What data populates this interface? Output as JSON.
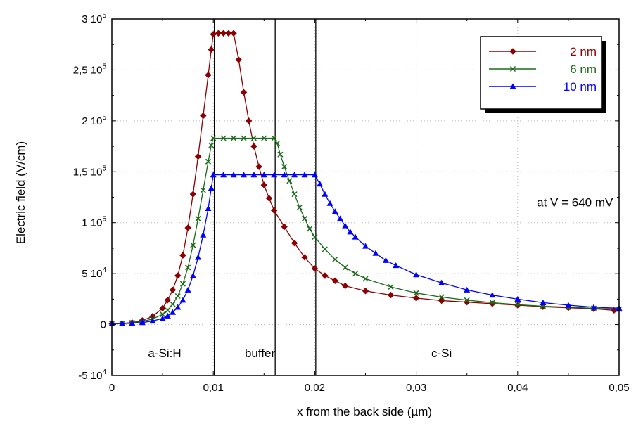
{
  "chart_data": {
    "type": "line",
    "xlabel": "x from the back side (µm)",
    "ylabel": "Electric field (V/cm)",
    "xlim": [
      0,
      0.05
    ],
    "ylim": [
      -50000,
      300000
    ],
    "grid": true,
    "legend_position": "top-right",
    "x_ticks": [
      {
        "value": 0,
        "label": "0"
      },
      {
        "value": 0.01,
        "label": "0,01"
      },
      {
        "value": 0.02,
        "label": "0,02"
      },
      {
        "value": 0.03,
        "label": "0,03"
      },
      {
        "value": 0.04,
        "label": "0,04"
      },
      {
        "value": 0.05,
        "label": "0,05"
      }
    ],
    "y_ticks": [
      {
        "value": -50000,
        "mant": "-5 10",
        "exp": "4"
      },
      {
        "value": 0,
        "mant": "0",
        "exp": ""
      },
      {
        "value": 50000,
        "mant": "5 10",
        "exp": "4"
      },
      {
        "value": 100000,
        "mant": "1 10",
        "exp": "5"
      },
      {
        "value": 150000,
        "mant": "1,5 10",
        "exp": "5"
      },
      {
        "value": 200000,
        "mant": "2 10",
        "exp": "5"
      },
      {
        "value": 250000,
        "mant": "2,5 10",
        "exp": "5"
      },
      {
        "value": 300000,
        "mant": "3 10",
        "exp": "5"
      }
    ],
    "vertical_lines": [
      0.0101,
      0.0161,
      0.0201
    ],
    "region_labels": [
      {
        "text": "a-Si:H",
        "x": 0.0052,
        "y": -28000
      },
      {
        "text": "buffer",
        "x": 0.0146,
        "y": -28000
      },
      {
        "text": "c-Si",
        "x": 0.0325,
        "y": -28000
      }
    ],
    "annotation": {
      "text": "at V = 640 mV",
      "x": 0.0494,
      "y": 120000
    },
    "series": [
      {
        "name": "2 nm",
        "color": "#8b0000",
        "marker": "diamond",
        "points": [
          [
            0,
            1000
          ],
          [
            0.001,
            1100
          ],
          [
            0.002,
            2000
          ],
          [
            0.003,
            4000
          ],
          [
            0.004,
            8000
          ],
          [
            0.005,
            16000
          ],
          [
            0.0055,
            24000
          ],
          [
            0.006,
            34000
          ],
          [
            0.0065,
            48000
          ],
          [
            0.007,
            68000
          ],
          [
            0.0075,
            95000
          ],
          [
            0.008,
            128000
          ],
          [
            0.0085,
            165000
          ],
          [
            0.009,
            205000
          ],
          [
            0.0095,
            245000
          ],
          [
            0.0098,
            270000
          ],
          [
            0.01,
            285000
          ],
          [
            0.0105,
            286000
          ],
          [
            0.011,
            286000
          ],
          [
            0.0115,
            286000
          ],
          [
            0.012,
            286000
          ],
          [
            0.0125,
            260000
          ],
          [
            0.013,
            228000
          ],
          [
            0.0135,
            200000
          ],
          [
            0.014,
            175000
          ],
          [
            0.0145,
            155000
          ],
          [
            0.015,
            137000
          ],
          [
            0.0155,
            124000
          ],
          [
            0.016,
            112000
          ],
          [
            0.017,
            96000
          ],
          [
            0.018,
            80000
          ],
          [
            0.019,
            66000
          ],
          [
            0.02,
            55000
          ],
          [
            0.021,
            48000
          ],
          [
            0.022,
            43000
          ],
          [
            0.023,
            38000
          ],
          [
            0.025,
            33000
          ],
          [
            0.0275,
            29000
          ],
          [
            0.03,
            26000
          ],
          [
            0.0325,
            23500
          ],
          [
            0.035,
            22000
          ],
          [
            0.0375,
            20500
          ],
          [
            0.04,
            19000
          ],
          [
            0.0425,
            17500
          ],
          [
            0.045,
            16500
          ],
          [
            0.0475,
            15500
          ],
          [
            0.0495,
            14000
          ]
        ]
      },
      {
        "name": "6 nm",
        "color": "#1a6b1a",
        "marker": "x",
        "points": [
          [
            0,
            1000
          ],
          [
            0.001,
            1100
          ],
          [
            0.002,
            1800
          ],
          [
            0.003,
            3000
          ],
          [
            0.004,
            5500
          ],
          [
            0.005,
            10000
          ],
          [
            0.0055,
            14000
          ],
          [
            0.006,
            20000
          ],
          [
            0.0065,
            28000
          ],
          [
            0.007,
            40000
          ],
          [
            0.0075,
            56000
          ],
          [
            0.008,
            78000
          ],
          [
            0.0085,
            104000
          ],
          [
            0.009,
            132000
          ],
          [
            0.0095,
            160000
          ],
          [
            0.0098,
            176000
          ],
          [
            0.01,
            183000
          ],
          [
            0.011,
            183000
          ],
          [
            0.012,
            183000
          ],
          [
            0.013,
            183000
          ],
          [
            0.014,
            183000
          ],
          [
            0.015,
            183000
          ],
          [
            0.016,
            183000
          ],
          [
            0.0163,
            178000
          ],
          [
            0.0166,
            167000
          ],
          [
            0.017,
            155000
          ],
          [
            0.0175,
            141000
          ],
          [
            0.018,
            128000
          ],
          [
            0.0185,
            115000
          ],
          [
            0.019,
            104000
          ],
          [
            0.0195,
            94000
          ],
          [
            0.02,
            86000
          ],
          [
            0.021,
            74000
          ],
          [
            0.022,
            64000
          ],
          [
            0.023,
            56000
          ],
          [
            0.024,
            50000
          ],
          [
            0.025,
            45000
          ],
          [
            0.0275,
            37000
          ],
          [
            0.03,
            31000
          ],
          [
            0.0325,
            27000
          ],
          [
            0.035,
            24000
          ],
          [
            0.0375,
            21500
          ],
          [
            0.04,
            19500
          ],
          [
            0.0425,
            18000
          ],
          [
            0.045,
            17000
          ],
          [
            0.0475,
            16000
          ],
          [
            0.05,
            15000
          ]
        ]
      },
      {
        "name": "10 nm",
        "color": "#0000ff",
        "marker": "triangle",
        "points": [
          [
            0,
            1000
          ],
          [
            0.001,
            1000
          ],
          [
            0.002,
            1300
          ],
          [
            0.003,
            2000
          ],
          [
            0.004,
            3500
          ],
          [
            0.005,
            6000
          ],
          [
            0.0055,
            8500
          ],
          [
            0.006,
            12000
          ],
          [
            0.0065,
            17000
          ],
          [
            0.007,
            24000
          ],
          [
            0.0075,
            34000
          ],
          [
            0.008,
            48000
          ],
          [
            0.0085,
            66000
          ],
          [
            0.009,
            88000
          ],
          [
            0.0095,
            114000
          ],
          [
            0.0098,
            134000
          ],
          [
            0.01,
            147000
          ],
          [
            0.011,
            147000
          ],
          [
            0.012,
            147000
          ],
          [
            0.013,
            147000
          ],
          [
            0.014,
            147000
          ],
          [
            0.015,
            147000
          ],
          [
            0.016,
            147000
          ],
          [
            0.017,
            147000
          ],
          [
            0.018,
            147000
          ],
          [
            0.019,
            147000
          ],
          [
            0.02,
            147000
          ],
          [
            0.0205,
            138000
          ],
          [
            0.021,
            128000
          ],
          [
            0.0215,
            119000
          ],
          [
            0.022,
            111000
          ],
          [
            0.0225,
            104000
          ],
          [
            0.023,
            97000
          ],
          [
            0.0235,
            91000
          ],
          [
            0.024,
            86000
          ],
          [
            0.025,
            77000
          ],
          [
            0.026,
            70000
          ],
          [
            0.027,
            63000
          ],
          [
            0.028,
            58000
          ],
          [
            0.03,
            49000
          ],
          [
            0.0325,
            41000
          ],
          [
            0.035,
            34000
          ],
          [
            0.0375,
            29000
          ],
          [
            0.04,
            25000
          ],
          [
            0.0425,
            21500
          ],
          [
            0.045,
            19000
          ],
          [
            0.0475,
            17000
          ],
          [
            0.05,
            16000
          ]
        ]
      }
    ]
  }
}
